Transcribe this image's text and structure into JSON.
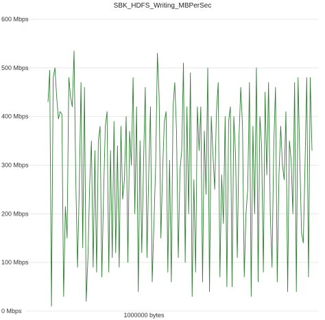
{
  "chart_data": {
    "type": "line",
    "title": "SBK_HDFS_Writing_MBPerSec",
    "xlabel": "",
    "ylabel": "",
    "y_unit": "Mbps",
    "ylim": [
      0,
      600
    ],
    "yticks": [
      0,
      100,
      200,
      300,
      400,
      500,
      600
    ],
    "ytick_labels": [
      "0 Mbps",
      "100 Mbps",
      "200 Mbps",
      "300 Mbps",
      "400 Mbps",
      "500 Mbps",
      "600 Mbps"
    ],
    "xtick_labels": [
      "1000000 bytes"
    ],
    "grid": true,
    "legend": "none",
    "colors": {
      "series": "#2e7d32",
      "grid": "#e8e8e8"
    },
    "series": [
      {
        "values": [
          430,
          495,
          10,
          480,
          500,
          440,
          395,
          410,
          405,
          30,
          215,
          150,
          480,
          440,
          420,
          535,
          270,
          90,
          250,
          470,
          130,
          460,
          20,
          110,
          260,
          350,
          90,
          330,
          80,
          350,
          380,
          70,
          240,
          380,
          410,
          80,
          330,
          110,
          390,
          120,
          340,
          90,
          380,
          230,
          270,
          400,
          100,
          370,
          300,
          480,
          200,
          420,
          40,
          350,
          120,
          300,
          460,
          110,
          280,
          420,
          60,
          180,
          300,
          530,
          440,
          150,
          290,
          390,
          410,
          80,
          310,
          60,
          420,
          470,
          370,
          110,
          290,
          330,
          510,
          100,
          420,
          200,
          490,
          30,
          270,
          80,
          420,
          330,
          420,
          60,
          370,
          240,
          500,
          40,
          400,
          320,
          250,
          410,
          470,
          70,
          280,
          180,
          400,
          50,
          390,
          420,
          50,
          400,
          320,
          110,
          360,
          460,
          380,
          70,
          200,
          250,
          470,
          30,
          380,
          200,
          500,
          60,
          400,
          340,
          80,
          450,
          280,
          470,
          200,
          90,
          340,
          460,
          60,
          280,
          380,
          300,
          270,
          410,
          40,
          350,
          310,
          200,
          470,
          40,
          480,
          310,
          160,
          140,
          300,
          480,
          70,
          480,
          330
        ]
      }
    ]
  }
}
